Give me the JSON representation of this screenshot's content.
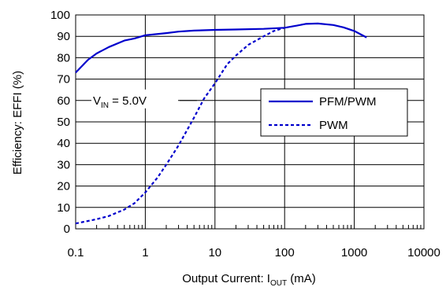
{
  "chart_data": {
    "type": "line",
    "xscale": "log",
    "xlim": [
      0.1,
      10000
    ],
    "ylim": [
      0,
      100
    ],
    "x_ticks": [
      0.1,
      1,
      10,
      100,
      1000,
      10000
    ],
    "x_tick_labels": [
      "0.1",
      "1",
      "10",
      "100",
      "1000",
      "10000"
    ],
    "y_ticks": [
      0,
      10,
      20,
      30,
      40,
      50,
      60,
      70,
      80,
      90,
      100
    ],
    "y_tick_labels": [
      "0",
      "10",
      "20",
      "30",
      "40",
      "50",
      "60",
      "70",
      "80",
      "90",
      "100"
    ],
    "xlabel": {
      "main": "Output Current: I",
      "sub": "OUT",
      "unit": " (mA)"
    },
    "ylabel": "Efficiency: EFFI (%)",
    "grid": true,
    "legend_position": "right",
    "annotation": {
      "main": "V",
      "sub": "IN",
      "rest": " = 5.0V"
    },
    "series": [
      {
        "name": "PFM/PWM",
        "style": "solid",
        "color": "#0000cc",
        "points": [
          [
            0.1,
            73
          ],
          [
            0.15,
            79
          ],
          [
            0.2,
            82
          ],
          [
            0.3,
            85
          ],
          [
            0.5,
            88
          ],
          [
            0.7,
            89
          ],
          [
            1,
            90.5
          ],
          [
            2,
            91.5
          ],
          [
            3,
            92.2
          ],
          [
            5,
            92.7
          ],
          [
            10,
            93
          ],
          [
            20,
            93.2
          ],
          [
            50,
            93.5
          ],
          [
            100,
            94
          ],
          [
            150,
            95
          ],
          [
            200,
            95.8
          ],
          [
            300,
            96
          ],
          [
            500,
            95.3
          ],
          [
            700,
            94.2
          ],
          [
            1000,
            92.5
          ],
          [
            1500,
            89.5
          ]
        ]
      },
      {
        "name": "PWM",
        "style": "dashed",
        "color": "#0000cc",
        "points": [
          [
            0.1,
            2.5
          ],
          [
            0.2,
            4.5
          ],
          [
            0.3,
            6
          ],
          [
            0.5,
            9
          ],
          [
            0.7,
            12
          ],
          [
            1,
            17
          ],
          [
            1.5,
            24
          ],
          [
            2,
            30
          ],
          [
            3,
            39
          ],
          [
            5,
            52
          ],
          [
            7,
            61
          ],
          [
            10,
            68
          ],
          [
            15,
            77
          ],
          [
            20,
            81
          ],
          [
            30,
            86
          ],
          [
            50,
            90
          ],
          [
            70,
            92.5
          ],
          [
            100,
            94
          ]
        ]
      }
    ]
  }
}
